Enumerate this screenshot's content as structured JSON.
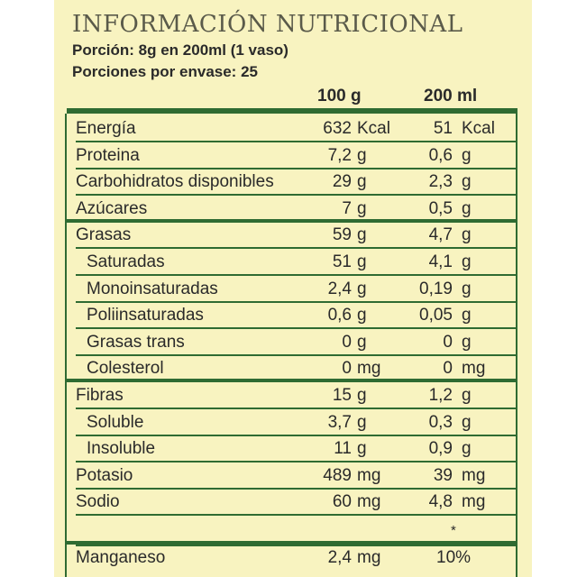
{
  "title": "INFORMACIÓN NUTRICIONAL",
  "portion": "Porción: 8g en 200ml (1 vaso)",
  "servings": "Porciones por envase: 25",
  "columns": {
    "col1": "100 g",
    "col2": "200 ml"
  },
  "rows": [
    {
      "name": "Energía",
      "v1": "632",
      "u1": "Kcal",
      "v2": "51",
      "u2": "Kcal",
      "indent": false
    },
    {
      "name": "Proteina",
      "v1": "7,2",
      "u1": "g",
      "v2": "0,6",
      "u2": "g",
      "indent": false
    },
    {
      "name": "Carbohidratos disponibles",
      "v1": "29",
      "u1": "g",
      "v2": "2,3",
      "u2": "g",
      "indent": false
    },
    {
      "name": "Azúcares",
      "v1": "7",
      "u1": "g",
      "v2": "0,5",
      "u2": "g",
      "indent": false
    },
    {
      "name": "Grasas",
      "v1": "59",
      "u1": "g",
      "v2": "4,7",
      "u2": "g",
      "indent": false
    },
    {
      "name": "Saturadas",
      "v1": "51",
      "u1": "g",
      "v2": "4,1",
      "u2": "g",
      "indent": true
    },
    {
      "name": "Monoinsaturadas",
      "v1": "2,4",
      "u1": "g",
      "v2": "0,19",
      "u2": "g",
      "indent": true
    },
    {
      "name": "Poliinsaturadas",
      "v1": "0,6",
      "u1": "g",
      "v2": "0,05",
      "u2": "g",
      "indent": true
    },
    {
      "name": "Grasas trans",
      "v1": "0",
      "u1": "g",
      "v2": "0",
      "u2": "g",
      "indent": true
    },
    {
      "name": "Colesterol",
      "v1": "0",
      "u1": "mg",
      "v2": "0",
      "u2": "mg",
      "indent": true
    },
    {
      "name": "Fibras",
      "v1": "15",
      "u1": "g",
      "v2": "1,2",
      "u2": "g",
      "indent": false
    },
    {
      "name": "Soluble",
      "v1": "3,7",
      "u1": "g",
      "v2": "0,3",
      "u2": "g",
      "indent": true
    },
    {
      "name": "Insoluble",
      "v1": "11",
      "u1": "g",
      "v2": "0,9",
      "u2": "g",
      "indent": true
    },
    {
      "name": "Potasio",
      "v1": "489",
      "u1": "mg",
      "v2": "39",
      "u2": "mg",
      "indent": false
    },
    {
      "name": "Sodio",
      "v1": "60",
      "u1": "mg",
      "v2": "4,8",
      "u2": "mg",
      "indent": false
    }
  ],
  "star_note": "*",
  "manganese": {
    "name": "Manganeso",
    "v1": "2,4",
    "u1": "mg",
    "pct": "10%"
  },
  "colors": {
    "background": "#f8f3c0",
    "rule": "#2f6b32"
  }
}
